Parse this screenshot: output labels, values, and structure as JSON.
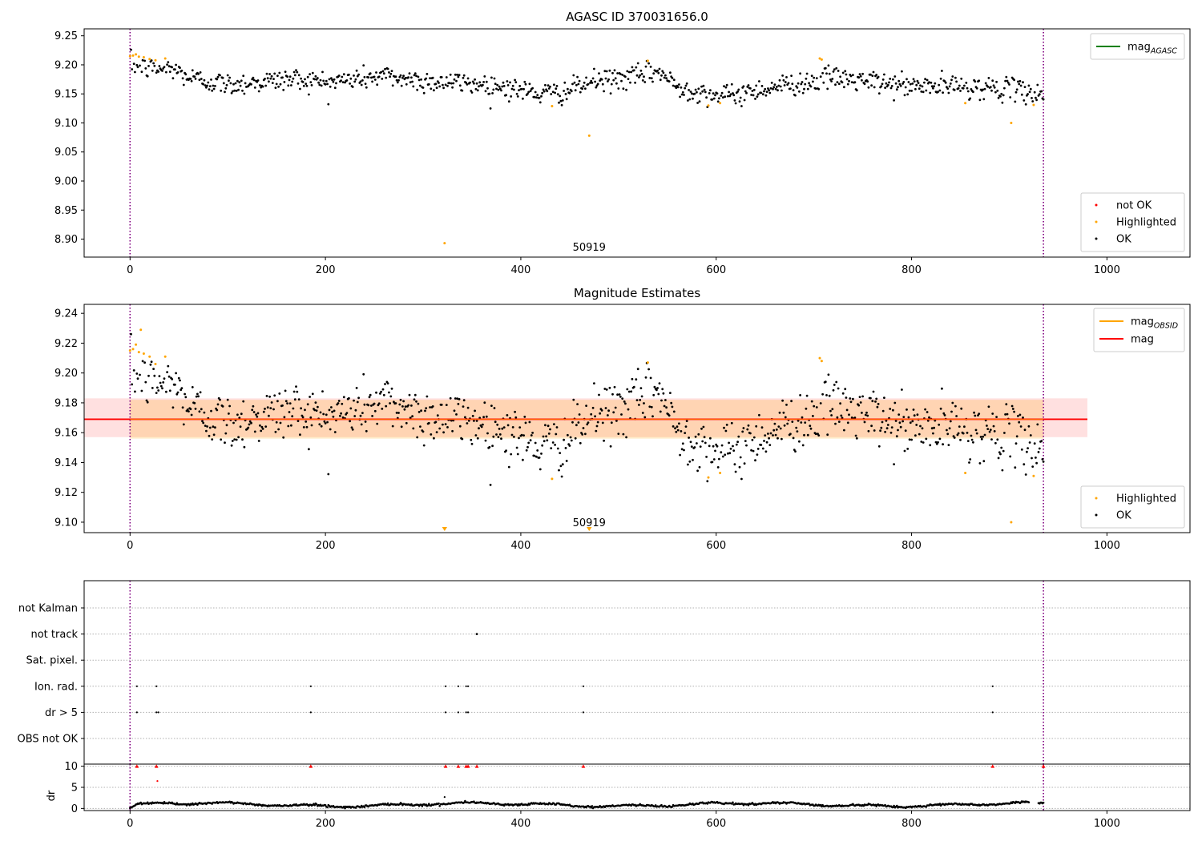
{
  "chart_data": [
    {
      "type": "scatter",
      "title": "AGASC ID 370031656.0",
      "xlim": [
        -47,
        1085
      ],
      "ylim": [
        8.869,
        9.262
      ],
      "xticks": [
        0,
        200,
        400,
        600,
        800,
        1000
      ],
      "yticks": [
        8.9,
        8.95,
        9.0,
        9.05,
        9.1,
        9.15,
        9.2,
        9.25
      ],
      "vlines": [
        0,
        935
      ],
      "annotation": {
        "text": "50919",
        "x": 470,
        "y": 8.88
      },
      "legend_lines": [
        {
          "label": "mag",
          "sub": "AGASC",
          "color": "#008000"
        }
      ],
      "legend_points": [
        {
          "label": "not OK",
          "color": "#ff0000"
        },
        {
          "label": "Highlighted",
          "color": "#ffa500"
        },
        {
          "label": "OK",
          "color": "#000000"
        }
      ],
      "highlighted": [
        [
          0,
          9.215
        ],
        [
          3,
          9.216
        ],
        [
          6,
          9.218
        ],
        [
          9,
          9.214
        ],
        [
          14,
          9.213
        ],
        [
          20,
          9.21
        ],
        [
          26,
          9.208
        ],
        [
          36,
          9.211
        ],
        [
          322,
          8.893
        ],
        [
          432,
          9.129
        ],
        [
          470,
          9.078
        ],
        [
          530,
          9.207
        ],
        [
          592,
          9.13
        ],
        [
          604,
          9.134
        ],
        [
          706,
          9.211
        ],
        [
          708,
          9.209
        ],
        [
          855,
          9.134
        ],
        [
          902,
          9.1
        ],
        [
          925,
          9.131
        ]
      ]
    },
    {
      "type": "scatter",
      "title": "Magnitude Estimates",
      "xlim": [
        -47,
        1085
      ],
      "ylim": [
        9.093,
        9.246
      ],
      "xticks": [
        0,
        200,
        400,
        600,
        800,
        1000
      ],
      "yticks": [
        9.1,
        9.12,
        9.14,
        9.16,
        9.18,
        9.2,
        9.22,
        9.24
      ],
      "vlines": [
        0,
        935
      ],
      "mag": 9.169,
      "mag_band": [
        9.157,
        9.183
      ],
      "mag_obsid_band": [
        9.156,
        9.182
      ],
      "annotation": {
        "text": "50919",
        "x": 470,
        "y": 9.097
      },
      "legend_lines": [
        {
          "label": "mag",
          "sub": "OBSID",
          "color": "#ffa500"
        },
        {
          "label": "mag",
          "sub": "",
          "color": "#ff0000"
        }
      ],
      "legend_points": [
        {
          "label": "Highlighted",
          "color": "#ffa500"
        },
        {
          "label": "OK",
          "color": "#000000"
        }
      ],
      "highlighted": [
        [
          0,
          9.215
        ],
        [
          3,
          9.216
        ],
        [
          6,
          9.219
        ],
        [
          9,
          9.214
        ],
        [
          11,
          9.229
        ],
        [
          14,
          9.213
        ],
        [
          20,
          9.211
        ],
        [
          26,
          9.206
        ],
        [
          36,
          9.211
        ],
        [
          432,
          9.129
        ],
        [
          530,
          9.207
        ],
        [
          592,
          9.13
        ],
        [
          604,
          9.133
        ],
        [
          706,
          9.21
        ],
        [
          708,
          9.208
        ],
        [
          855,
          9.133
        ],
        [
          902,
          9.1
        ],
        [
          925,
          9.131
        ]
      ],
      "offscale_markers": [
        322,
        470
      ]
    },
    {
      "type": "scatter",
      "title": "",
      "xlim": [
        -47,
        1085
      ],
      "xticks": [
        0,
        200,
        400,
        600,
        800,
        1000
      ],
      "vlines": [
        0,
        935
      ],
      "flag_labels": [
        "not Kalman",
        "not track",
        "Sat. pixel.",
        "Ion. rad.",
        "dr > 5",
        "OBS not OK"
      ],
      "flag_points": {
        "not track": [
          355
        ],
        "Ion. rad.": [
          7,
          27,
          185,
          323,
          336,
          344,
          346,
          464,
          883
        ],
        "dr > 5": [
          7,
          27,
          29,
          185,
          323,
          336,
          344,
          346,
          464,
          883
        ]
      },
      "dr_ylabel": "dr",
      "dr_yticks": [
        0,
        5,
        10
      ],
      "dr_ylim": [
        -0.5,
        10.5
      ],
      "dr_capped": [
        7,
        27,
        185,
        323,
        336,
        344,
        346,
        355,
        464,
        883,
        935
      ],
      "dr_outliers": [
        [
          28,
          6.5
        ],
        [
          322,
          2.7
        ]
      ]
    }
  ]
}
